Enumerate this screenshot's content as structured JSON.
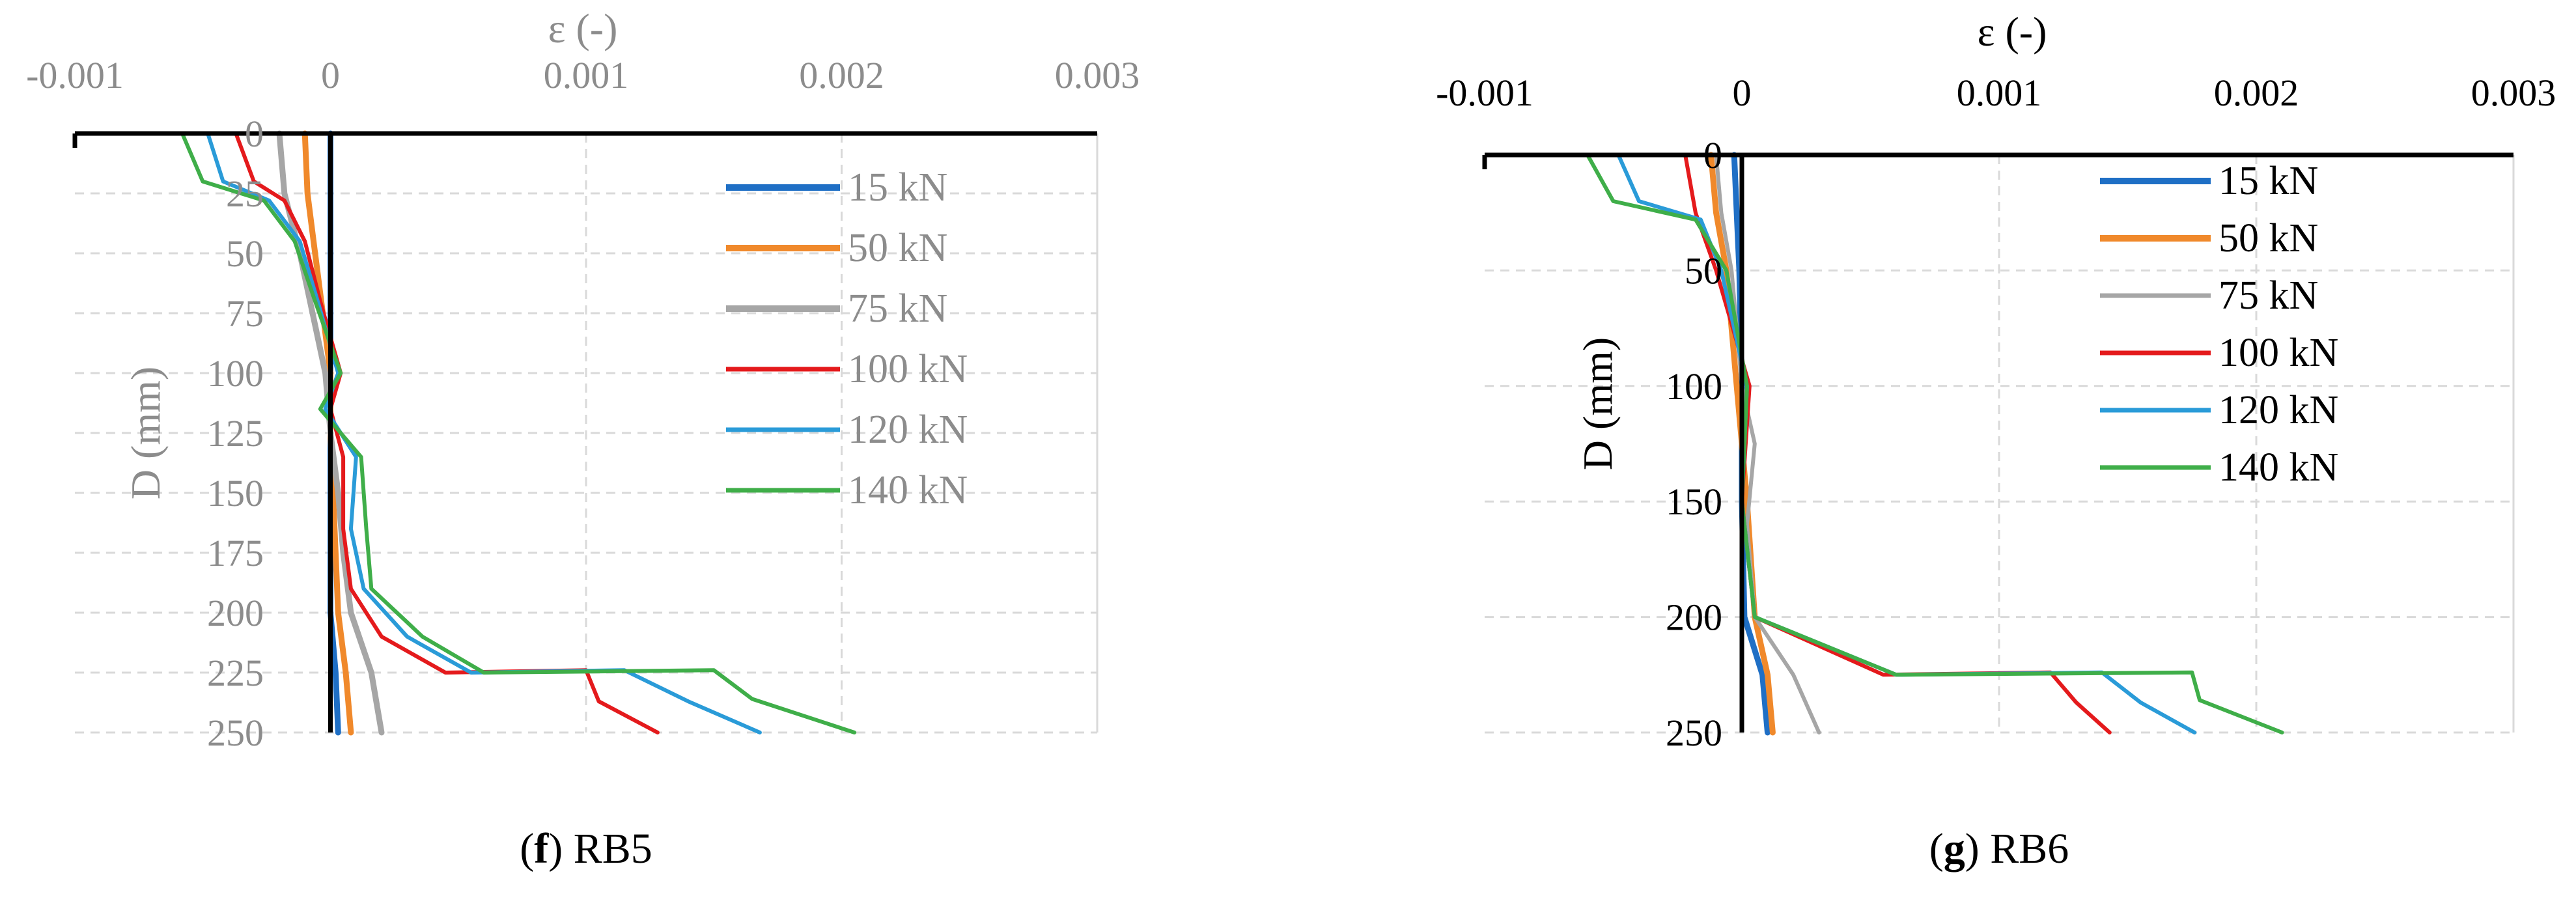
{
  "chart_data": [
    {
      "type": "line",
      "panel": "f",
      "caption_letter": "f",
      "caption_text": "RB5",
      "title": "",
      "xlabel": "ε (-)",
      "ylabel": "D (mm)",
      "xlim": [
        -0.001,
        0.003
      ],
      "ylim": [
        0,
        250
      ],
      "y_inverted": true,
      "x_axis_position": "top",
      "grid": true,
      "legend_position": "top-right",
      "x_tick_labels": [
        "-0.001",
        "0",
        "0.001",
        "0.002",
        "0.003"
      ],
      "y_tick_labels": [
        "0",
        "25",
        "50",
        "75",
        "100",
        "125",
        "150",
        "175",
        "200",
        "225",
        "250"
      ],
      "colors": {
        "axis_text": "#8c8c8c",
        "legend_text": "#8c8c8c",
        "grid": "#d9d9d9",
        "frame": "#000000"
      },
      "series": [
        {
          "name": "15 kN",
          "color": "#1f6fc5",
          "width": 9,
          "points": [
            [
              0.0,
              0
            ],
            [
              0.0,
              25
            ],
            [
              0.0,
              50
            ],
            [
              0.0,
              75
            ],
            [
              0.0,
              100
            ],
            [
              0.0,
              125
            ],
            [
              0.0,
              150
            ],
            [
              0.0,
              175
            ],
            [
              0.0,
              200
            ],
            [
              2e-05,
              225
            ],
            [
              3e-05,
              250
            ]
          ]
        },
        {
          "name": "50 kN",
          "color": "#f0892b",
          "width": 9,
          "points": [
            [
              -0.0001,
              0
            ],
            [
              -9e-05,
              25
            ],
            [
              -6e-05,
              50
            ],
            [
              -3e-05,
              75
            ],
            [
              0.0,
              100
            ],
            [
              0.0,
              125
            ],
            [
              1e-05,
              150
            ],
            [
              2e-05,
              175
            ],
            [
              3e-05,
              200
            ],
            [
              6e-05,
              225
            ],
            [
              8e-05,
              250
            ]
          ]
        },
        {
          "name": "75 kN",
          "color": "#a6a6a6",
          "width": 9,
          "points": [
            [
              -0.0002,
              0
            ],
            [
              -0.00018,
              25
            ],
            [
              -0.00012,
              50
            ],
            [
              -7e-05,
              75
            ],
            [
              -2e-05,
              100
            ],
            [
              0.0,
              125
            ],
            [
              3e-05,
              150
            ],
            [
              5e-05,
              175
            ],
            [
              8e-05,
              200
            ],
            [
              0.00016,
              225
            ],
            [
              0.0002,
              250
            ]
          ]
        },
        {
          "name": "100 kN",
          "color": "#e41a1c",
          "width": 6,
          "points": [
            [
              -0.00037,
              0
            ],
            [
              -0.0003,
              20
            ],
            [
              -0.00018,
              28
            ],
            [
              -0.0001,
              45
            ],
            [
              -4e-05,
              70
            ],
            [
              4e-05,
              100
            ],
            [
              0.0,
              115
            ],
            [
              5e-05,
              135
            ],
            [
              5e-05,
              165
            ],
            [
              8e-05,
              190
            ],
            [
              0.0002,
              210
            ],
            [
              0.00045,
              225
            ],
            [
              0.001,
              224
            ],
            [
              0.00105,
              237
            ],
            [
              0.00128,
              250
            ]
          ]
        },
        {
          "name": "120 kN",
          "color": "#2a9bd8",
          "width": 6,
          "points": [
            [
              -0.00048,
              0
            ],
            [
              -0.00042,
              20
            ],
            [
              -0.00024,
              28
            ],
            [
              -0.00012,
              45
            ],
            [
              -5e-05,
              70
            ],
            [
              3e-05,
              100
            ],
            [
              -2e-05,
              115
            ],
            [
              0.0001,
              135
            ],
            [
              8e-05,
              165
            ],
            [
              0.00013,
              190
            ],
            [
              0.0003,
              210
            ],
            [
              0.00055,
              225
            ],
            [
              0.00115,
              224
            ],
            [
              0.0014,
              237
            ],
            [
              0.00168,
              250
            ]
          ]
        },
        {
          "name": "140 kN",
          "color": "#3fae49",
          "width": 6,
          "points": [
            [
              -0.00058,
              0
            ],
            [
              -0.0005,
              20
            ],
            [
              -0.00026,
              28
            ],
            [
              -0.00014,
              45
            ],
            [
              -6e-05,
              70
            ],
            [
              4e-05,
              100
            ],
            [
              -4e-05,
              115
            ],
            [
              0.00012,
              135
            ],
            [
              0.00014,
              165
            ],
            [
              0.00016,
              190
            ],
            [
              0.00036,
              210
            ],
            [
              0.0006,
              225
            ],
            [
              0.0015,
              224
            ],
            [
              0.00165,
              236
            ],
            [
              0.00205,
              250
            ]
          ]
        }
      ]
    },
    {
      "type": "line",
      "panel": "g",
      "caption_letter": "g",
      "caption_text": "RB6",
      "title": "",
      "xlabel": "ε (-)",
      "ylabel": "D (mm)",
      "xlim": [
        -0.001,
        0.003
      ],
      "ylim": [
        0,
        250
      ],
      "y_inverted": true,
      "x_axis_position": "top",
      "grid": true,
      "legend_position": "top-right",
      "x_tick_labels": [
        "-0.001",
        "0",
        "0.001",
        "0.002",
        "0.003"
      ],
      "y_tick_labels": [
        "0",
        "50",
        "100",
        "150",
        "200",
        "250"
      ],
      "colors": {
        "axis_text": "#000000",
        "legend_text": "#000000",
        "grid": "#d9d9d9",
        "frame": "#000000"
      },
      "series": [
        {
          "name": "15 kN",
          "color": "#1f6fc5",
          "width": 9,
          "points": [
            [
              -3e-05,
              0
            ],
            [
              -2e-05,
              25
            ],
            [
              -1e-05,
              50
            ],
            [
              0.0,
              100
            ],
            [
              0.0,
              150
            ],
            [
              1e-05,
              200
            ],
            [
              8e-05,
              225
            ],
            [
              0.0001,
              250
            ]
          ]
        },
        {
          "name": "50 kN",
          "color": "#f0892b",
          "width": 9,
          "points": [
            [
              -0.00012,
              0
            ],
            [
              -0.0001,
              25
            ],
            [
              -6e-05,
              50
            ],
            [
              -2e-05,
              100
            ],
            [
              2e-05,
              150
            ],
            [
              5e-05,
              200
            ],
            [
              0.0001,
              225
            ],
            [
              0.00012,
              250
            ]
          ]
        },
        {
          "name": "75 kN",
          "color": "#a6a6a6",
          "width": 6,
          "points": [
            [
              -0.0001,
              0
            ],
            [
              -8e-05,
              25
            ],
            [
              -4e-05,
              50
            ],
            [
              0.0,
              100
            ],
            [
              5e-05,
              125
            ],
            [
              2e-05,
              160
            ],
            [
              5e-05,
              200
            ],
            [
              0.0002,
              225
            ],
            [
              0.0003,
              250
            ]
          ]
        },
        {
          "name": "100 kN",
          "color": "#e41a1c",
          "width": 6,
          "points": [
            [
              -0.00022,
              0
            ],
            [
              -0.00018,
              25
            ],
            [
              -0.0001,
              50
            ],
            [
              3e-05,
              100
            ],
            [
              0.0,
              150
            ],
            [
              5e-05,
              200
            ],
            [
              0.00055,
              225
            ],
            [
              0.0012,
              224
            ],
            [
              0.0013,
              237
            ],
            [
              0.00143,
              250
            ]
          ]
        },
        {
          "name": "120 kN",
          "color": "#2a9bd8",
          "width": 6,
          "points": [
            [
              -0.00048,
              0
            ],
            [
              -0.0004,
              20
            ],
            [
              -0.00016,
              28
            ],
            [
              -8e-05,
              50
            ],
            [
              2e-05,
              100
            ],
            [
              0.0,
              150
            ],
            [
              5e-05,
              200
            ],
            [
              0.0006,
              225
            ],
            [
              0.0014,
              224
            ],
            [
              0.00155,
              237
            ],
            [
              0.00176,
              250
            ]
          ]
        },
        {
          "name": "140 kN",
          "color": "#3fae49",
          "width": 6,
          "points": [
            [
              -0.0006,
              0
            ],
            [
              -0.0005,
              20
            ],
            [
              -0.00018,
              28
            ],
            [
              -6e-05,
              50
            ],
            [
              2e-05,
              100
            ],
            [
              0.0,
              150
            ],
            [
              5e-05,
              200
            ],
            [
              0.0006,
              225
            ],
            [
              0.00175,
              224
            ],
            [
              0.00178,
              236
            ],
            [
              0.0021,
              250
            ]
          ]
        }
      ]
    }
  ]
}
